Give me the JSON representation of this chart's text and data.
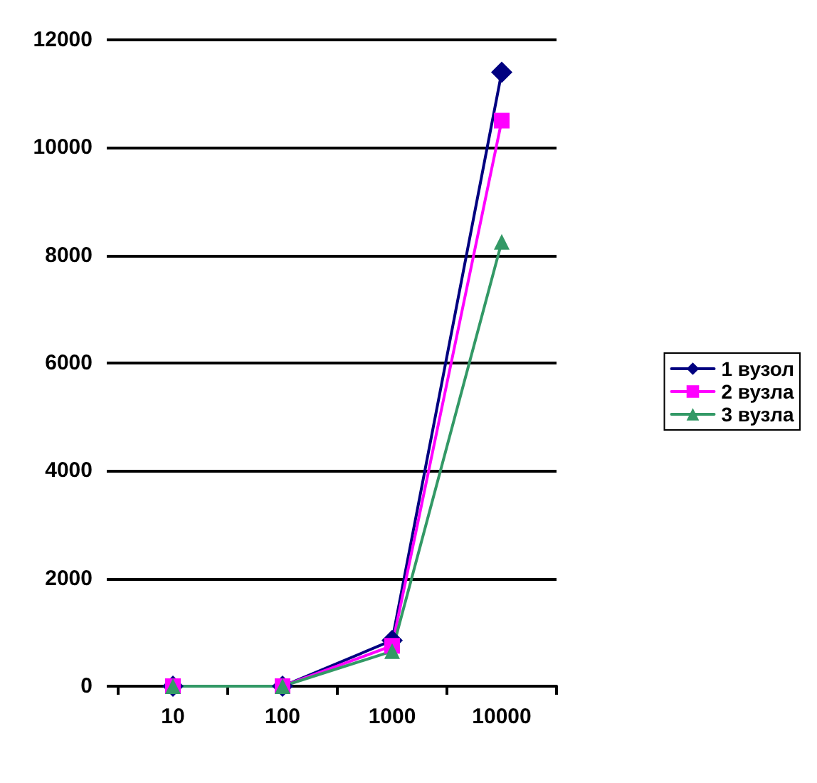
{
  "chart_data": {
    "type": "line",
    "categories": [
      "10",
      "100",
      "1000",
      "10000"
    ],
    "series": [
      {
        "name": "1 вузол",
        "color": "#000080",
        "marker": "diamond",
        "values": [
          0,
          0,
          850,
          11400
        ]
      },
      {
        "name": "2 вузла",
        "color": "#ff00ff",
        "marker": "square",
        "values": [
          0,
          0,
          750,
          10500
        ]
      },
      {
        "name": "3 вузла",
        "color": "#339966",
        "marker": "triangle",
        "values": [
          0,
          0,
          650,
          8250
        ]
      }
    ],
    "ylim": [
      0,
      12000
    ],
    "yticks": [
      0,
      2000,
      4000,
      6000,
      8000,
      10000,
      12000
    ],
    "grid": "y",
    "legend": "right"
  }
}
